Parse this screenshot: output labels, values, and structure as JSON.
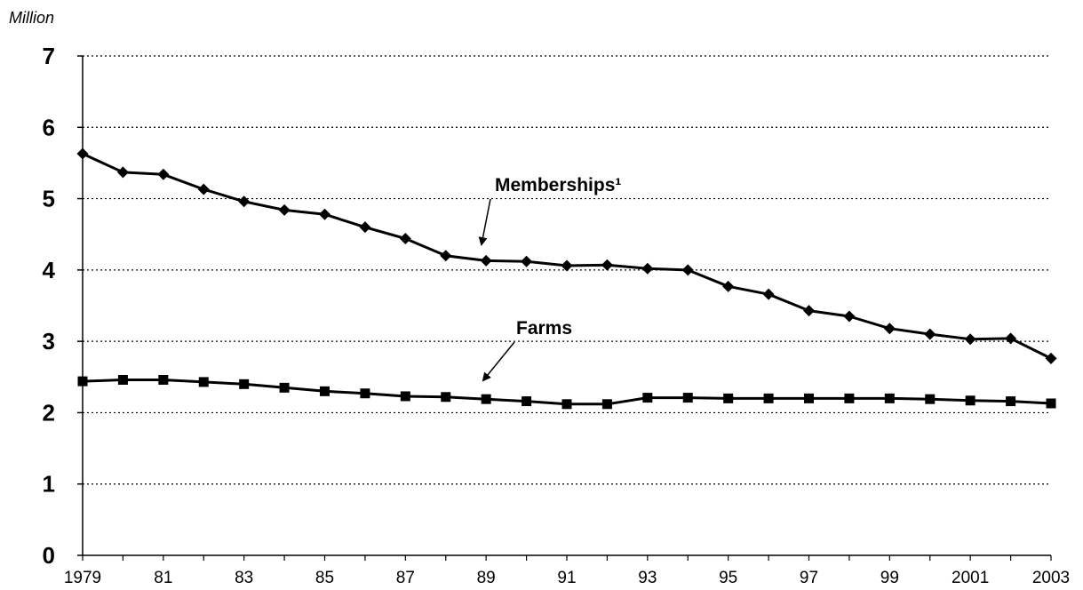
{
  "chart_data": {
    "type": "line",
    "ylabel": "Million",
    "ylim": [
      0,
      7
    ],
    "yticks": [
      "0",
      "1",
      "2",
      "3",
      "4",
      "5",
      "6",
      "7"
    ],
    "x": [
      1979,
      1980,
      1981,
      1982,
      1983,
      1984,
      1985,
      1986,
      1987,
      1988,
      1989,
      1990,
      1991,
      1992,
      1993,
      1994,
      1995,
      1996,
      1997,
      1998,
      1999,
      2000,
      2001,
      2002,
      2003
    ],
    "xtick_labels": [
      "1979",
      "81",
      "83",
      "85",
      "87",
      "89",
      "91",
      "93",
      "95",
      "97",
      "99",
      "2001",
      "2003"
    ],
    "xtick_years": [
      1979,
      1981,
      1983,
      1985,
      1987,
      1989,
      1991,
      1993,
      1995,
      1997,
      1999,
      2001,
      2003
    ],
    "grid": "horizontal-dotted",
    "series": [
      {
        "name": "Memberships¹",
        "marker": "diamond",
        "values": [
          5.63,
          5.37,
          5.34,
          5.13,
          4.96,
          4.84,
          4.78,
          4.6,
          4.44,
          4.2,
          4.13,
          4.12,
          4.06,
          4.07,
          4.02,
          4.0,
          3.77,
          3.66,
          3.43,
          3.35,
          3.18,
          3.1,
          3.03,
          3.04,
          2.76
        ],
        "color": "#000000"
      },
      {
        "name": "Farms",
        "marker": "square",
        "values": [
          2.44,
          2.46,
          2.46,
          2.43,
          2.4,
          2.35,
          2.3,
          2.27,
          2.23,
          2.22,
          2.19,
          2.16,
          2.12,
          2.12,
          2.21,
          2.21,
          2.2,
          2.2,
          2.2,
          2.2,
          2.2,
          2.19,
          2.17,
          2.16,
          2.13
        ],
        "color": "#000000"
      }
    ]
  }
}
